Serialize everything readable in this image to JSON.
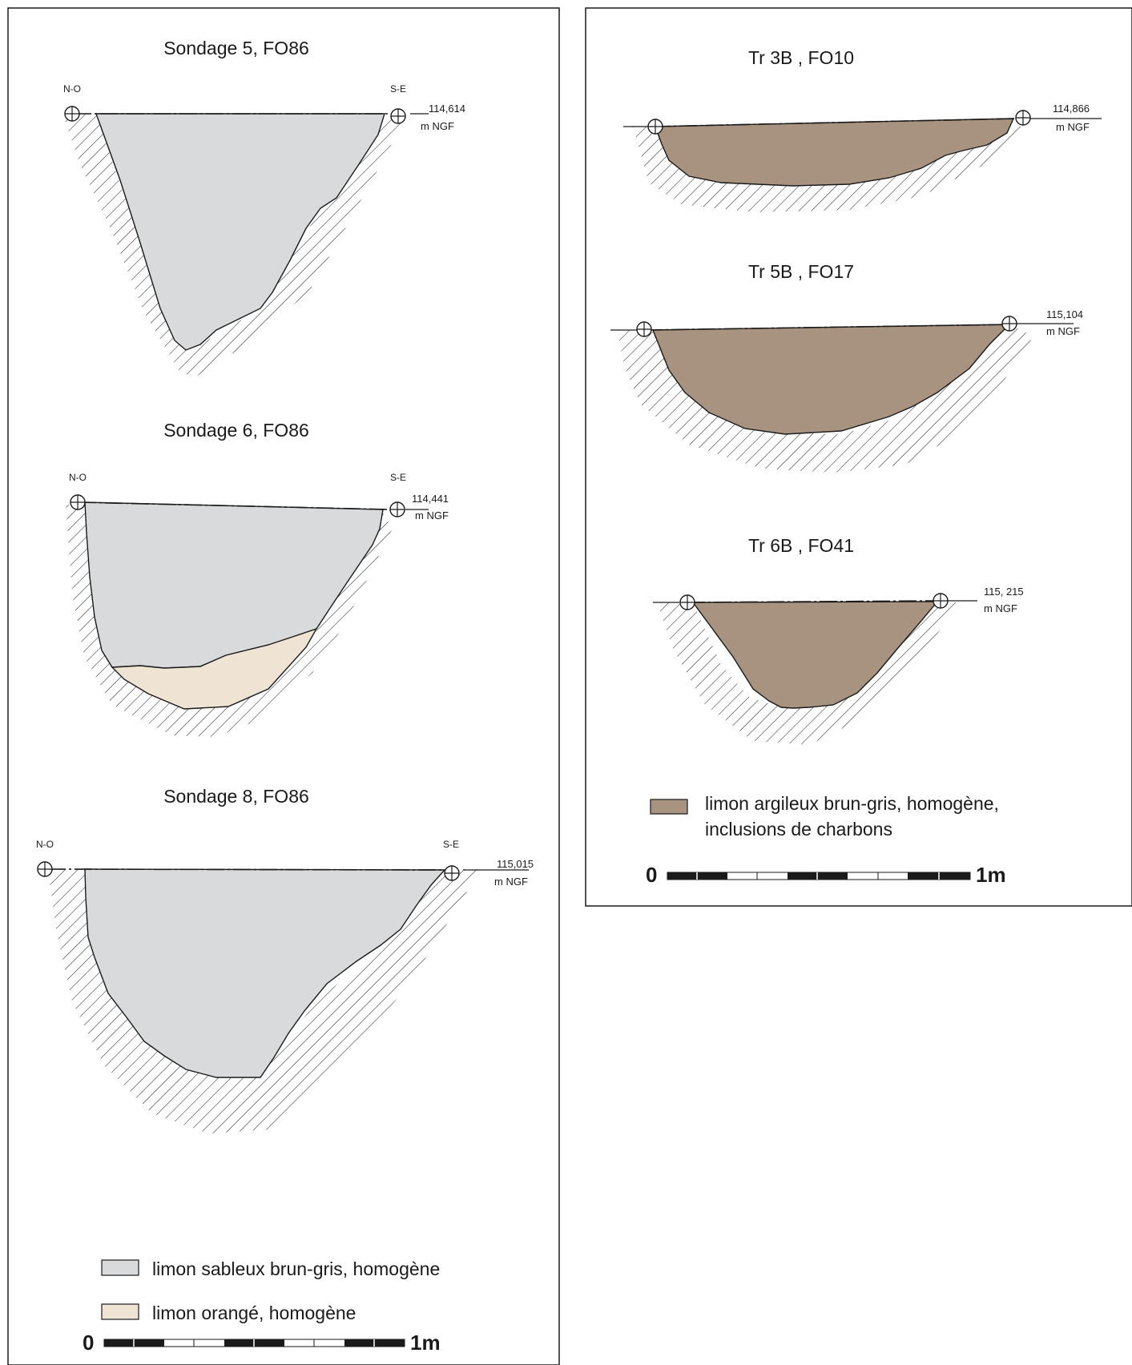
{
  "panels": {
    "left": {
      "sections": [
        {
          "title": "Sondage 5, FO86",
          "left_label": "N-O",
          "right_label": "S-E",
          "elevation": "114,614",
          "elevation_unit": "m NGF"
        },
        {
          "title": "Sondage 6, FO86",
          "left_label": "N-O",
          "right_label": "S-E",
          "elevation": "114,441",
          "elevation_unit": "m NGF"
        },
        {
          "title": "Sondage 8, FO86",
          "left_label": "N-O",
          "right_label": "S-E",
          "elevation": "115,015",
          "elevation_unit": "m NGF"
        }
      ],
      "legend": [
        {
          "label": "limon sableux brun-gris, homogène",
          "color": "#d9dadc"
        },
        {
          "label": "limon orangé, homogène",
          "color": "#efe4d4"
        }
      ],
      "scale": {
        "start": "0",
        "end": "1m"
      }
    },
    "right": {
      "sections": [
        {
          "title": "Tr 3B , FO10",
          "elevation": "114,866",
          "elevation_unit": "m NGF"
        },
        {
          "title": "Tr 5B , FO17",
          "elevation": "115,104",
          "elevation_unit": "m NGF"
        },
        {
          "title": "Tr 6B , FO41",
          "elevation": "115, 215",
          "elevation_unit": "m NGF"
        }
      ],
      "legend": [
        {
          "label_line1": "limon argileux brun-gris, homogène,",
          "label_line2": "inclusions de charbons",
          "color": "#a89380"
        }
      ],
      "scale": {
        "start": "0",
        "end": "1m"
      }
    }
  }
}
